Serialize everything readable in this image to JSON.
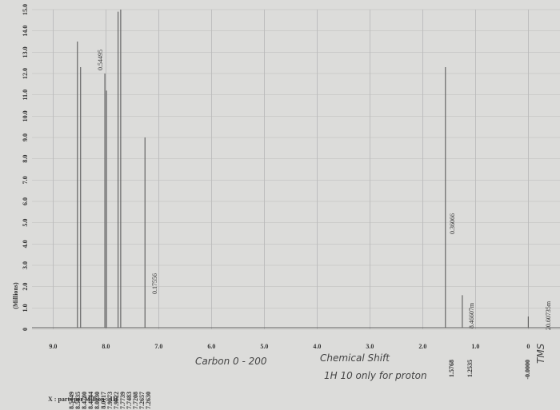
{
  "chart_data": {
    "type": "spectrum",
    "y_label": "(Millions)",
    "x_label": "X : parts per Million : 1H",
    "xlim": [
      9.4,
      -0.6
    ],
    "ylim": [
      0,
      15
    ],
    "xticks": [
      {
        "value": 9,
        "label": "9.0"
      },
      {
        "value": 8,
        "label": "8.0"
      },
      {
        "value": 7,
        "label": "7.0"
      },
      {
        "value": 6,
        "label": "6.0"
      },
      {
        "value": 5,
        "label": "5.0"
      },
      {
        "value": 4,
        "label": "4.0"
      },
      {
        "value": 3,
        "label": "3.0"
      },
      {
        "value": 2,
        "label": "2.0"
      },
      {
        "value": 1,
        "label": "1.0"
      },
      0
    ],
    "yticks": [
      0,
      {
        "value": 1,
        "label": "1.0"
      },
      {
        "value": 2,
        "label": "2.0"
      },
      {
        "value": 3,
        "label": "3.0"
      },
      {
        "value": 4,
        "label": "4.0"
      },
      {
        "value": 5,
        "label": "5.0"
      },
      {
        "value": 6,
        "label": "6.0"
      },
      {
        "value": 7,
        "label": "7.0"
      },
      {
        "value": 8,
        "label": "8.0"
      },
      {
        "value": 9,
        "label": "9.0"
      },
      {
        "value": 10,
        "label": "10.0"
      },
      {
        "value": 11,
        "label": "11.0"
      },
      {
        "value": 12,
        "label": "12.0"
      },
      {
        "value": 13,
        "label": "13.0"
      },
      {
        "value": 14,
        "label": "14.0"
      },
      {
        "value": 15,
        "label": "15.0"
      }
    ],
    "grid": true,
    "color": "#666666",
    "x": [
      8.54,
      8.48,
      8.02,
      7.99,
      7.77,
      7.72,
      7.26,
      1.57,
      1.25,
      0
    ],
    "values": [
      13.5,
      12.3,
      12.0,
      11.2,
      14.9,
      15,
      9.0,
      12.3,
      1.6,
      0.6
    ],
    "peak_labels": [
      "8.5449",
      "8.5035",
      "8.4780",
      "8.4744",
      "8.0230",
      "8.0117",
      "7.9973",
      "7.9922",
      "7.7739",
      "7.7483",
      "7.7208",
      "7.2657",
      "7.2630"
    ],
    "peak_labels_right": [
      "1.5768",
      "1.2535",
      "-0.0000"
    ],
    "integrals": [
      "0.54495",
      "0.17556",
      "0.36066",
      "8.46607m",
      "20.60735m"
    ],
    "notes": [
      "Carbon 0 - 200",
      "Chemical Shift",
      "1H 10 only for proton",
      "TMS"
    ]
  }
}
